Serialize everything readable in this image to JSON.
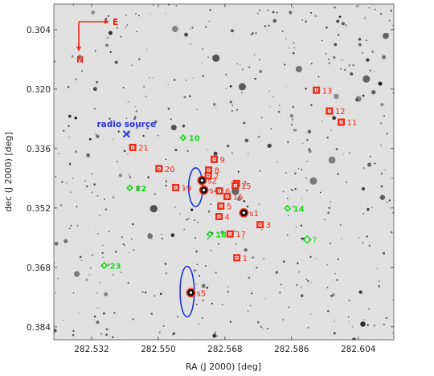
{
  "chart_data": {
    "type": "scatter",
    "title": "",
    "xlabel": "RA (J 2000) [deg]",
    "ylabel": "dec (J 2000) [deg]",
    "xlim": [
      282.5218,
      282.6136
    ],
    "ylim": [
      0.2971,
      0.3875
    ],
    "y_inverted": true,
    "x_ticks": [
      "282.532",
      "282.550",
      "282.568",
      "282.586",
      "282.604"
    ],
    "y_ticks": [
      "0.304",
      "0.320",
      "0.336",
      "0.352",
      "0.368",
      "0.384"
    ],
    "grid": false,
    "background": "grayscale sky image (inverted)",
    "compass": {
      "east_label": "E",
      "north_label": "N"
    },
    "annotation": {
      "label": "radio source",
      "ra": 282.5414,
      "dec": 0.3321,
      "marker": "x",
      "color": "#2b35e6"
    },
    "series": [
      {
        "marker": "square",
        "color": "#ee2a18",
        "points": [
          {
            "label": "1",
            "ra": 282.5712,
            "dec": 0.3654
          },
          {
            "label": "2",
            "ra": 282.5635,
            "dec": 0.3433
          },
          {
            "label": "3",
            "ra": 282.5775,
            "dec": 0.3565
          },
          {
            "label": "4",
            "ra": 282.5664,
            "dec": 0.3543
          },
          {
            "label": "5",
            "ra": 282.5669,
            "dec": 0.3515
          },
          {
            "label": "6",
            "ra": 282.5665,
            "dec": 0.3474
          },
          {
            "label": "7",
            "ra": 282.5711,
            "dec": 0.3454
          },
          {
            "label": "8",
            "ra": 282.5636,
            "dec": 0.3418
          },
          {
            "label": "9",
            "ra": 282.5651,
            "dec": 0.3389
          },
          {
            "label": "11",
            "ra": 282.5994,
            "dec": 0.3289
          },
          {
            "label": "12",
            "ra": 282.5962,
            "dec": 0.3259
          },
          {
            "label": "13",
            "ra": 282.5927,
            "dec": 0.3203
          },
          {
            "label": "15",
            "ra": 282.5708,
            "dec": 0.346
          },
          {
            "label": "16",
            "ra": 282.5686,
            "dec": 0.3489
          },
          {
            "label": "17",
            "ra": 282.5694,
            "dec": 0.359
          },
          {
            "label": "19",
            "ra": 282.5547,
            "dec": 0.3465
          },
          {
            "label": "20",
            "ra": 282.5502,
            "dec": 0.3414
          },
          {
            "label": "21",
            "ra": 282.5431,
            "dec": 0.3357
          }
        ]
      },
      {
        "marker": "diamond",
        "color": "#1fd81f",
        "points": [
          {
            "label": "10",
            "ra": 282.5567,
            "dec": 0.3331
          },
          {
            "label": "14",
            "ra": 282.5849,
            "dec": 0.3521
          },
          {
            "label": "18",
            "ra": 282.5639,
            "dec": 0.3591
          },
          {
            "label": "22",
            "ra": 282.5423,
            "dec": 0.3466
          },
          {
            "label": "23",
            "ra": 282.5354,
            "dec": 0.3675
          }
        ]
      },
      {
        "marker": "diamond-open",
        "color": "#1fd81f",
        "points": [
          {
            "label": "?",
            "ra": 282.5902,
            "dec": 0.3605
          }
        ]
      },
      {
        "marker": "circle",
        "color": "#ee2a18",
        "points": [
          {
            "label": "s1",
            "ra": 282.5731,
            "dec": 0.3533
          },
          {
            "label": "s2",
            "ra": 282.5618,
            "dec": 0.3446
          },
          {
            "label": "s4",
            "ra": 282.5623,
            "dec": 0.3472
          },
          {
            "label": "s5",
            "ra": 282.5588,
            "dec": 0.3748
          }
        ]
      }
    ],
    "error_ellipses": [
      {
        "ra": 282.5601,
        "dec": 0.3464,
        "sigma_ra": 0.0019,
        "sigma_dec": 0.0052,
        "color": "#1b35d8"
      },
      {
        "ra": 282.5578,
        "dec": 0.3745,
        "sigma_ra": 0.0019,
        "sigma_dec": 0.0068,
        "color": "#1b35d8"
      }
    ]
  }
}
